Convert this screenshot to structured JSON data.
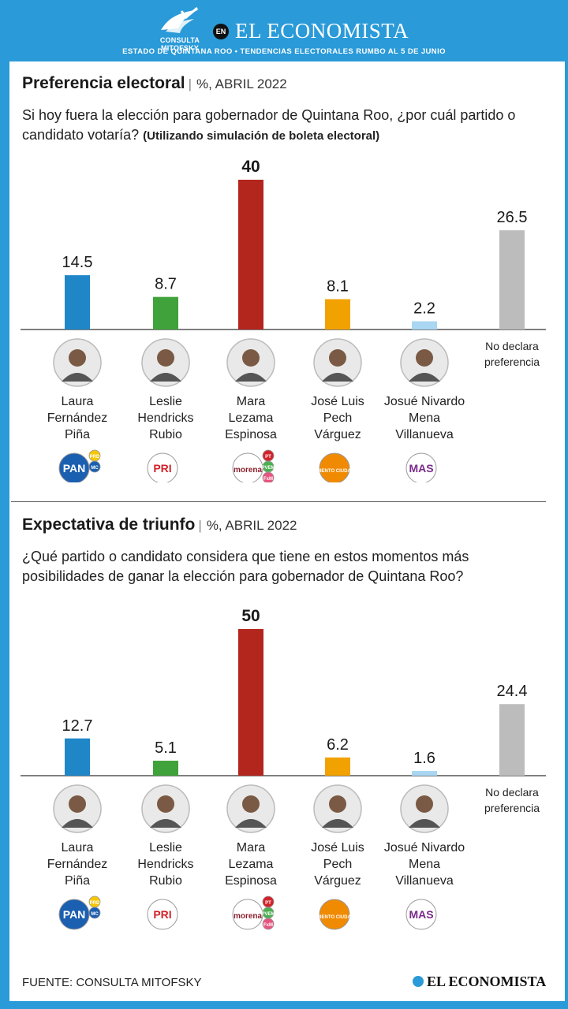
{
  "header": {
    "mitofsky_logo": "CONSULTA MITOFSKY",
    "en_badge": "EN",
    "brand": "EL ECONOMISTA",
    "subtitle": "ESTADO DE QUINTANA ROO • TENDENCIAS ELECTORALES RUMBO AL 5 DE JUNIO"
  },
  "colors": {
    "header_blue": "#2a9ad8",
    "pan": "#1f86c8",
    "pri": "#3fa23a",
    "morena": "#b3261e",
    "mc": "#f2a200",
    "mas": "#a9d6f2",
    "none": "#bcbcbc"
  },
  "sections": [
    {
      "title": "Preferencia electoral",
      "meta": "%, ABRIL 2022",
      "question": "Si hoy fuera la elección para gobernador de Quintana Roo, ¿por cuál partido o candidato votaría?",
      "question_note": "(Utilizando simulación de boleta electoral)"
    },
    {
      "title": "Expectativa de triunfo",
      "meta": "%, ABRIL 2022",
      "question": "¿Qué partido o candidato considera que tiene en estos momentos más posibilidades de ganar la elección para gobernador de Quintana Roo?",
      "question_note": ""
    }
  ],
  "candidates": [
    {
      "name_lines": [
        "Laura",
        "Fernández",
        "Piña"
      ],
      "parties": [
        "PAN",
        "PRD",
        "MC"
      ]
    },
    {
      "name_lines": [
        "Leslie",
        "Hendricks",
        "Rubio"
      ],
      "parties": [
        "PRI"
      ]
    },
    {
      "name_lines": [
        "Mara",
        "Lezama",
        "Espinosa"
      ],
      "parties": [
        "morena",
        "PT",
        "PVEM",
        "FxM"
      ]
    },
    {
      "name_lines": [
        "José Luis",
        "Pech",
        "Várguez"
      ],
      "parties": [
        "MOVIMIENTO CIUDADANO"
      ]
    },
    {
      "name_lines": [
        "Josué Nivardo",
        "Mena",
        "Villanueva"
      ],
      "parties": [
        "MAS"
      ]
    },
    {
      "name_lines": [
        "No declara",
        "preferencia"
      ],
      "parties": []
    }
  ],
  "chart_data": [
    {
      "type": "bar",
      "title": "Preferencia electoral",
      "categories": [
        "Laura Fernández Piña",
        "Leslie Hendricks Rubio",
        "Mara Lezama Espinosa",
        "José Luis Pech Várguez",
        "Josué Nivardo Mena Villanueva",
        "No declara preferencia"
      ],
      "values": [
        14.5,
        8.7,
        40,
        8.1,
        2.2,
        26.5
      ],
      "labels": [
        "14.5",
        "8.7",
        "40",
        "8.1",
        "2.2",
        "26.5"
      ],
      "colors": [
        "#1f86c8",
        "#3fa23a",
        "#b3261e",
        "#f2a200",
        "#a9d6f2",
        "#bcbcbc"
      ],
      "ylim": [
        0,
        40
      ],
      "unit": "%"
    },
    {
      "type": "bar",
      "title": "Expectativa de triunfo",
      "categories": [
        "Laura Fernández Piña",
        "Leslie Hendricks Rubio",
        "Mara Lezama Espinosa",
        "José Luis Pech Várguez",
        "Josué Nivardo Mena Villanueva",
        "No declara preferencia"
      ],
      "values": [
        12.7,
        5.1,
        50,
        6.2,
        1.6,
        24.4
      ],
      "labels": [
        "12.7",
        "5.1",
        "50",
        "6.2",
        "1.6",
        "24.4"
      ],
      "colors": [
        "#1f86c8",
        "#3fa23a",
        "#b3261e",
        "#f2a200",
        "#a9d6f2",
        "#bcbcbc"
      ],
      "ylim": [
        0,
        50
      ],
      "unit": "%"
    }
  ],
  "footer": {
    "source": "FUENTE: CONSULTA MITOFSKY",
    "brand": "EL ECONOMISTA"
  }
}
